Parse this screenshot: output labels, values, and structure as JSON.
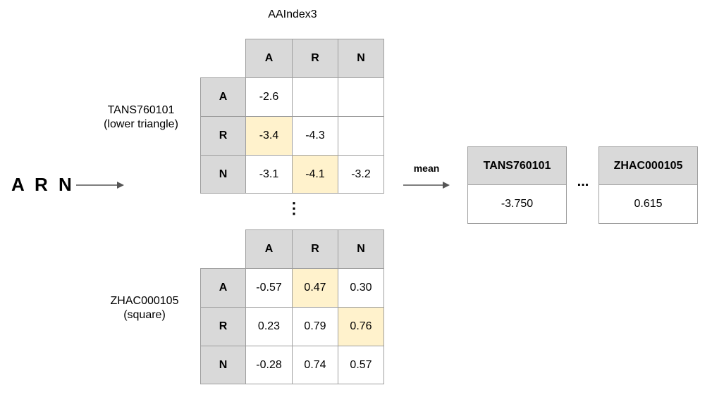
{
  "title": "AAIndex3",
  "sequence": "A R N",
  "matrix1": {
    "name": "TANS760101",
    "note": "(lower triangle)",
    "col_headers": [
      "A",
      "R",
      "N"
    ],
    "row_headers": [
      "A",
      "R",
      "N"
    ],
    "cells": [
      [
        "-2.6",
        "",
        ""
      ],
      [
        "-3.4",
        "-4.3",
        ""
      ],
      [
        "-3.1",
        "-4.1",
        "-3.2"
      ]
    ],
    "highlighted": [
      [
        1,
        0
      ],
      [
        2,
        1
      ]
    ]
  },
  "vertical_ellipsis": "⋮",
  "matrix2": {
    "name": "ZHAC000105",
    "note": "(square)",
    "col_headers": [
      "A",
      "R",
      "N"
    ],
    "row_headers": [
      "A",
      "R",
      "N"
    ],
    "cells": [
      [
        "-0.57",
        "0.47",
        "0.30"
      ],
      [
        "0.23",
        "0.79",
        "0.76"
      ],
      [
        "-0.28",
        "0.74",
        "0.57"
      ]
    ],
    "highlighted": [
      [
        0,
        1
      ],
      [
        1,
        2
      ]
    ]
  },
  "mean_label": "mean",
  "result_features": [
    {
      "name": "TANS760101",
      "value": "-3.750"
    },
    {
      "name": "ZHAC000105",
      "value": "0.615"
    }
  ],
  "horizontal_ellipsis": "...",
  "colors": {
    "header": "#d9d9d9",
    "highlight": "#fff2cc",
    "border": "#9e9e9e",
    "arrow": "#555555"
  }
}
